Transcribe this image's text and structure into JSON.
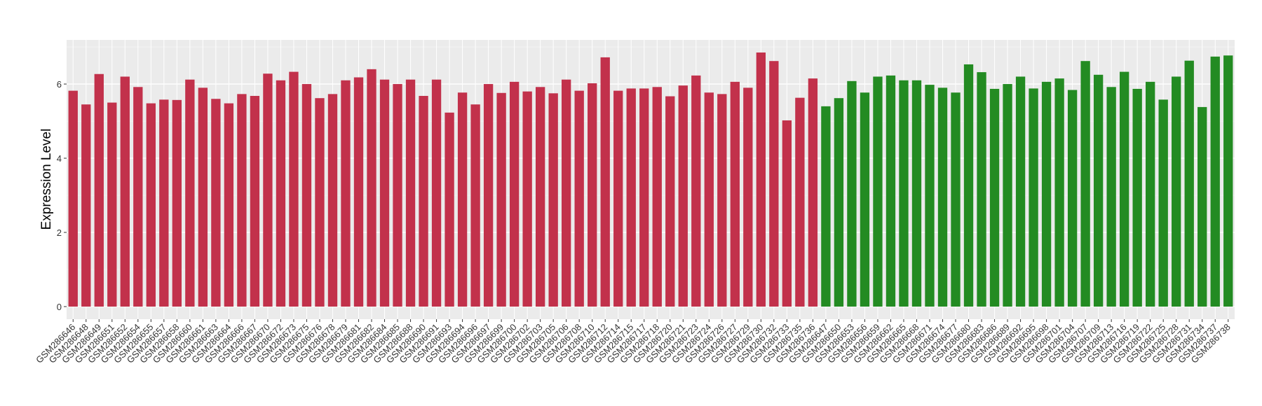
{
  "chart_data": {
    "type": "bar",
    "y_label": "Expression Level",
    "categories": [
      "GSM286646",
      "GSM286648",
      "GSM286649",
      "GSM286651",
      "GSM286652",
      "GSM286654",
      "GSM286655",
      "GSM286657",
      "GSM286658",
      "GSM286660",
      "GSM286661",
      "GSM286663",
      "GSM286664",
      "GSM286666",
      "GSM286667",
      "GSM286670",
      "GSM286672",
      "GSM286673",
      "GSM286675",
      "GSM286676",
      "GSM286678",
      "GSM286679",
      "GSM286681",
      "GSM286682",
      "GSM286684",
      "GSM286685",
      "GSM286688",
      "GSM286690",
      "GSM286691",
      "GSM286693",
      "GSM286694",
      "GSM286696",
      "GSM286697",
      "GSM286699",
      "GSM286700",
      "GSM286702",
      "GSM286703",
      "GSM286705",
      "GSM286706",
      "GSM286708",
      "GSM286710",
      "GSM286712",
      "GSM286714",
      "GSM286715",
      "GSM286717",
      "GSM286718",
      "GSM286720",
      "GSM286721",
      "GSM286723",
      "GSM286724",
      "GSM286726",
      "GSM286727",
      "GSM286729",
      "GSM286730",
      "GSM286732",
      "GSM286733",
      "GSM286735",
      "GSM286736",
      "GSM286647",
      "GSM286650",
      "GSM286653",
      "GSM286656",
      "GSM286659",
      "GSM286662",
      "GSM286665",
      "GSM286668",
      "GSM286671",
      "GSM286674",
      "GSM286677",
      "GSM286680",
      "GSM286683",
      "GSM286686",
      "GSM286689",
      "GSM286692",
      "GSM286695",
      "GSM286698",
      "GSM286701",
      "GSM286704",
      "GSM286707",
      "GSM286709",
      "GSM286713",
      "GSM286716",
      "GSM286719",
      "GSM286722",
      "GSM286725",
      "GSM286728",
      "GSM286731",
      "GSM286734",
      "GSM286737",
      "GSM286738"
    ],
    "values": [
      5.82,
      5.45,
      6.27,
      5.5,
      6.2,
      5.92,
      5.48,
      5.58,
      5.57,
      6.12,
      5.9,
      5.6,
      5.48,
      5.73,
      5.68,
      6.28,
      6.1,
      6.33,
      6.0,
      5.62,
      5.73,
      6.1,
      6.18,
      6.4,
      6.12,
      6.0,
      6.12,
      5.68,
      6.12,
      5.23,
      5.77,
      5.45,
      6.0,
      5.76,
      6.06,
      5.8,
      5.92,
      5.75,
      6.12,
      5.82,
      6.02,
      6.72,
      5.82,
      5.88,
      5.88,
      5.92,
      5.67,
      5.96,
      6.23,
      5.77,
      5.73,
      6.06,
      5.9,
      6.85,
      6.62,
      5.02,
      5.63,
      6.15,
      5.4,
      5.62,
      6.08,
      5.77,
      6.2,
      6.23,
      6.1,
      6.1,
      5.98,
      5.9,
      5.77,
      6.53,
      6.32,
      5.87,
      6.0,
      6.2,
      5.88,
      6.06,
      6.15,
      5.84,
      6.62,
      6.25,
      5.92,
      6.33,
      5.87,
      6.06,
      5.58,
      6.2,
      6.63,
      5.38,
      6.74,
      6.77
    ],
    "colors": [
      "#c2314b",
      "#c2314b",
      "#c2314b",
      "#c2314b",
      "#c2314b",
      "#c2314b",
      "#c2314b",
      "#c2314b",
      "#c2314b",
      "#c2314b",
      "#c2314b",
      "#c2314b",
      "#c2314b",
      "#c2314b",
      "#c2314b",
      "#c2314b",
      "#c2314b",
      "#c2314b",
      "#c2314b",
      "#c2314b",
      "#c2314b",
      "#c2314b",
      "#c2314b",
      "#c2314b",
      "#c2314b",
      "#c2314b",
      "#c2314b",
      "#c2314b",
      "#c2314b",
      "#c2314b",
      "#c2314b",
      "#c2314b",
      "#c2314b",
      "#c2314b",
      "#c2314b",
      "#c2314b",
      "#c2314b",
      "#c2314b",
      "#c2314b",
      "#c2314b",
      "#c2314b",
      "#c2314b",
      "#c2314b",
      "#c2314b",
      "#c2314b",
      "#c2314b",
      "#c2314b",
      "#c2314b",
      "#c2314b",
      "#c2314b",
      "#c2314b",
      "#c2314b",
      "#c2314b",
      "#c2314b",
      "#c2314b",
      "#c2314b",
      "#c2314b",
      "#c2314b",
      "#238b22",
      "#238b22",
      "#238b22",
      "#238b22",
      "#238b22",
      "#238b22",
      "#238b22",
      "#238b22",
      "#238b22",
      "#238b22",
      "#238b22",
      "#238b22",
      "#238b22",
      "#238b22",
      "#238b22",
      "#238b22",
      "#238b22",
      "#238b22",
      "#238b22",
      "#238b22",
      "#238b22",
      "#238b22",
      "#238b22",
      "#238b22",
      "#238b22",
      "#238b22",
      "#238b22",
      "#238b22",
      "#238b22",
      "#238b22",
      "#238b22",
      "#238b22"
    ],
    "ylim": [
      -0.34,
      7.19
    ],
    "yticks": [
      0,
      2,
      4,
      6
    ],
    "minor_yticks": [
      1,
      3,
      5,
      7
    ],
    "grid": true
  }
}
